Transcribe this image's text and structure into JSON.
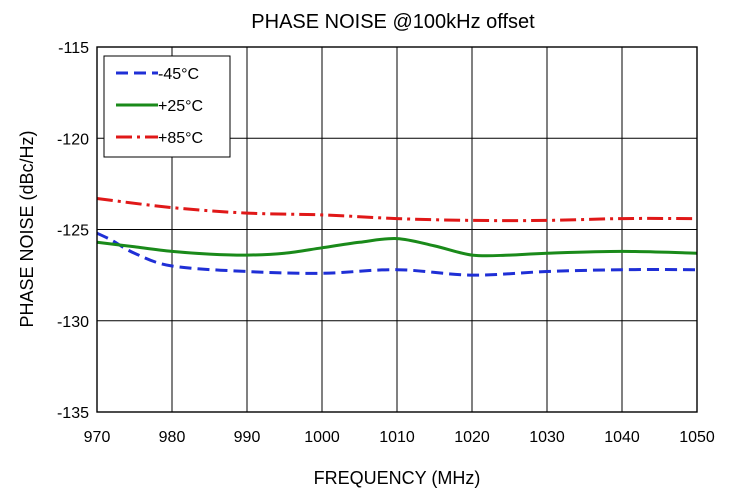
{
  "chart_data": {
    "type": "line",
    "title": "PHASE NOISE @100kHz offset",
    "xlabel": "FREQUENCY (MHz)",
    "ylabel": "PHASE NOISE  (dBc/Hz)",
    "xlim": [
      970,
      1050
    ],
    "ylim": [
      -135,
      -115
    ],
    "x_ticks": [
      970,
      980,
      990,
      1000,
      1010,
      1020,
      1030,
      1040,
      1050
    ],
    "x_tick_labels": [
      "970",
      "980",
      "990",
      "1000",
      "1010",
      "1020",
      "1030",
      "1040",
      "1050"
    ],
    "y_ticks": [
      -115,
      -120,
      -125,
      -130,
      -135
    ],
    "y_tick_labels": [
      "-115",
      "-120",
      "-125",
      "-130",
      "-135"
    ],
    "grid": true,
    "legend_position": "top-left",
    "series": [
      {
        "name": "-45°C",
        "color": "#1f2fd6",
        "dash": "dash",
        "x": [
          970,
          972,
          975,
          980,
          990,
          1000,
          1010,
          1020,
          1030,
          1040,
          1050
        ],
        "y": [
          -125.2,
          -125.6,
          -126.3,
          -127.0,
          -127.3,
          -127.4,
          -127.2,
          -127.5,
          -127.3,
          -127.2,
          -127.2
        ]
      },
      {
        "name": "+25°C",
        "color": "#1a8a1a",
        "dash": "solid",
        "x": [
          970,
          975,
          980,
          985,
          990,
          995,
          1000,
          1005,
          1010,
          1015,
          1020,
          1025,
          1030,
          1040,
          1050
        ],
        "y": [
          -125.7,
          -125.95,
          -126.2,
          -126.35,
          -126.4,
          -126.3,
          -126.0,
          -125.7,
          -125.5,
          -125.9,
          -126.4,
          -126.4,
          -126.3,
          -126.2,
          -126.3
        ]
      },
      {
        "name": "+85°C",
        "color": "#e01818",
        "dash": "dashdot",
        "x": [
          970,
          980,
          990,
          1000,
          1010,
          1020,
          1030,
          1040,
          1050
        ],
        "y": [
          -123.3,
          -123.8,
          -124.1,
          -124.2,
          -124.4,
          -124.5,
          -124.5,
          -124.4,
          -124.4
        ]
      }
    ]
  }
}
